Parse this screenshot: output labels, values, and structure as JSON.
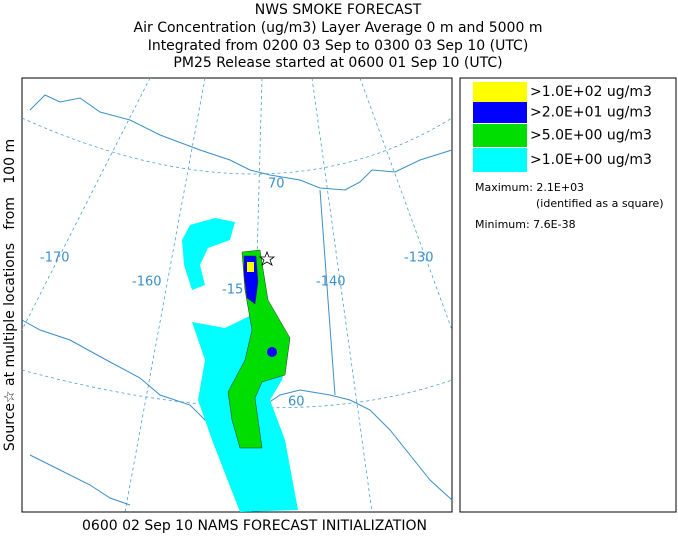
{
  "header": {
    "lines": [
      "NWS SMOKE FORECAST",
      "Air Concentration (ug/m3) Layer Average    0 m and  5000 m",
      "Integrated from 0200 03 Sep to 0300 03 Sep 10 (UTC)",
      "PM25 Release started at 0600 01 Sep 10 (UTC)"
    ]
  },
  "side_label": "Source☆ at multiple locations   from   100 m",
  "map": {
    "labels": [
      "-170",
      "-160",
      "-15",
      "-140",
      "-130",
      "70",
      "60"
    ]
  },
  "legend": {
    "items": [
      {
        "label": ">1.0E+02 ug/m3",
        "color": "#ffff00"
      },
      {
        "label": ">2.0E+01 ug/m3",
        "color": "#0000ff"
      },
      {
        "label": ">5.0E+00 ug/m3",
        "color": "#00dd00"
      },
      {
        "label": ">1.0E+00 ug/m3",
        "color": "#00ffff"
      }
    ],
    "maximum": "Maximum: 2.1E+03",
    "maximum_note": "(identified as a square)",
    "minimum": "Minimum: 7.6E-38"
  },
  "footer": "0600 02 Sep 10 NAMS FORECAST INITIALIZATION"
}
